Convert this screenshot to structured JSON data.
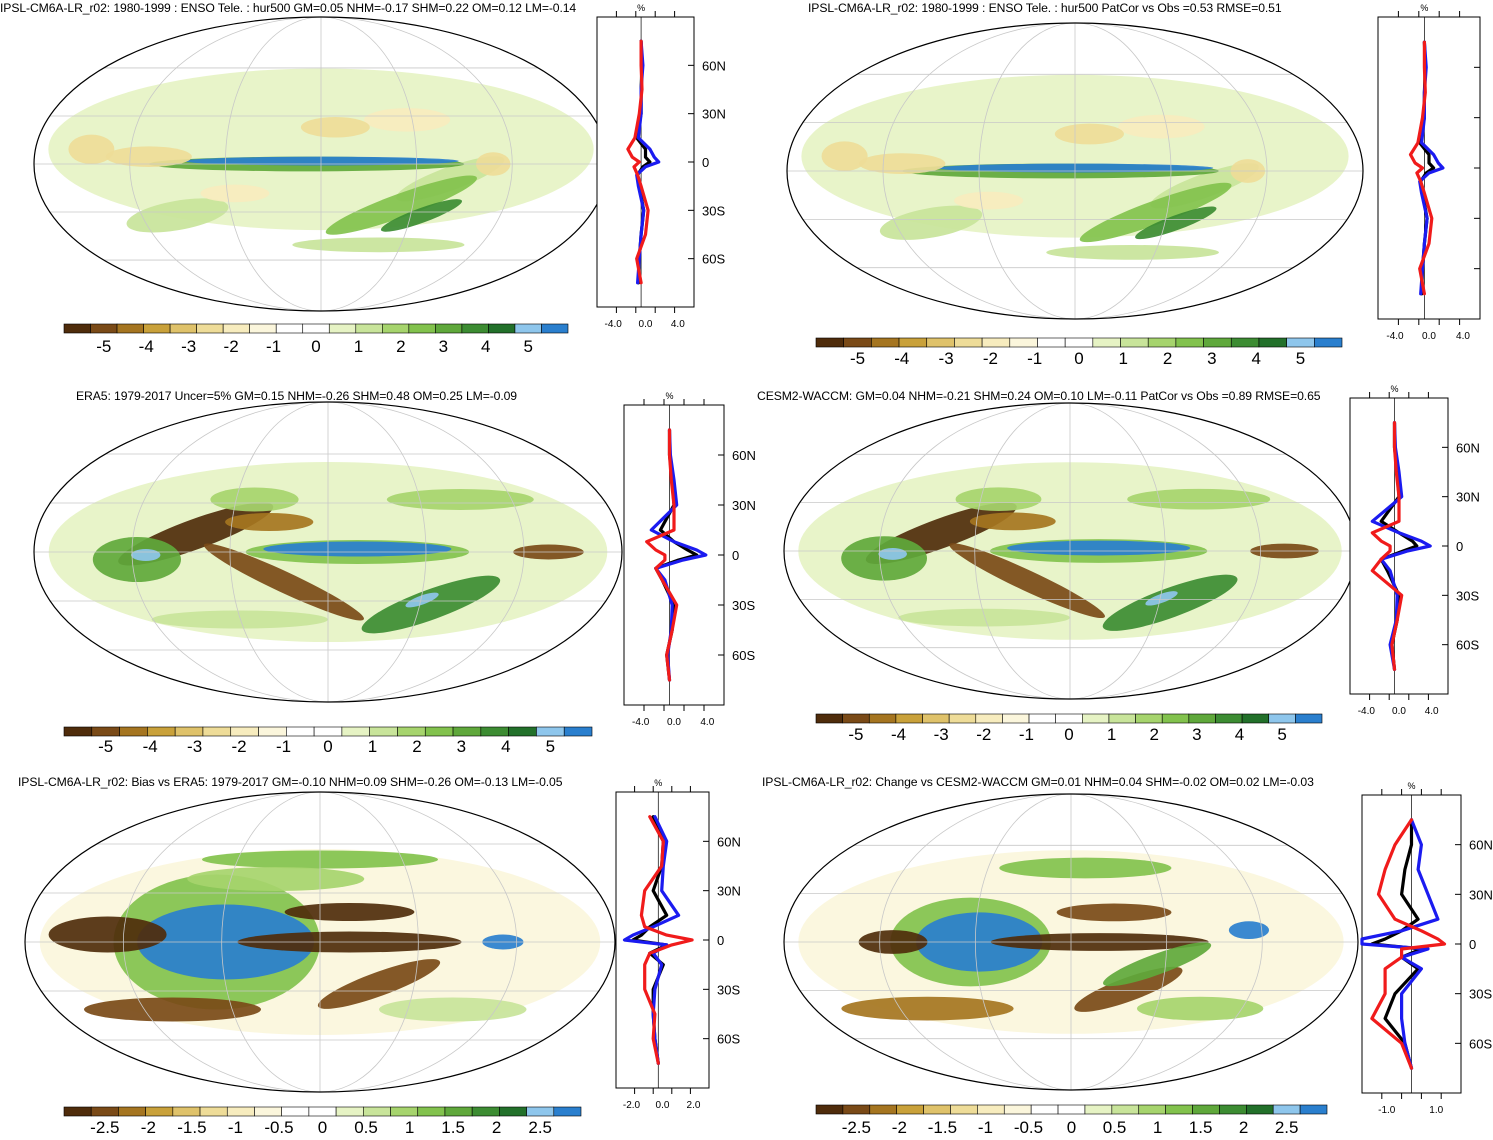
{
  "colors": {
    "palette": [
      "#4f2c0b",
      "#7a4a17",
      "#a57520",
      "#c9a13a",
      "#dfc26a",
      "#eedc98",
      "#f7ecbe",
      "#fbf6dc",
      "#ffffff",
      "#ffffff",
      "#e6f3c4",
      "#c8e49a",
      "#a6d46d",
      "#82c24d",
      "#5fa83b",
      "#3c8c32",
      "#22702a",
      "#8ec6ec",
      "#2a7fce"
    ],
    "zonal_lines": {
      "black": "#000000",
      "blue": "#1b1bf0",
      "red": "#f01b1b"
    }
  },
  "panels": [
    {
      "title": "IPSL-CM6A-LR_r02: 1980-1999 : ENSO Tele. : hur500 GM=0.05 NHM=-0.17 SHM=0.22 OM=0.12 LM=-0.14",
      "type": "model",
      "colorbar_labels": [
        "-5",
        "-4",
        "-3",
        "-2",
        "-1",
        "0",
        "1",
        "2",
        "3",
        "4",
        "5"
      ],
      "zonal_unit": "%",
      "zonal_xticks": [
        "-4.0",
        "0.0",
        "4.0"
      ],
      "zonal_ylabels": [
        "60N",
        "30N",
        "0",
        "30S",
        "60S"
      ]
    },
    {
      "title": "IPSL-CM6A-LR_r02: 1980-1999 : ENSO Tele. : hur500 PatCor vs Obs =0.53 RMSE=0.51",
      "type": "model",
      "colorbar_labels": [
        "-5",
        "-4",
        "-3",
        "-2",
        "-1",
        "0",
        "1",
        "2",
        "3",
        "4",
        "5"
      ],
      "zonal_unit": "%",
      "zonal_xticks": [
        "-4.0",
        "0.0",
        "4.0"
      ],
      "zonal_ylabels": []
    },
    {
      "title": "ERA5: 1979-2017 Uncer=5% GM=0.15 NHM=-0.26 SHM=0.48 OM=0.25 LM=-0.09",
      "type": "obs",
      "colorbar_labels": [
        "-5",
        "-4",
        "-3",
        "-2",
        "-1",
        "0",
        "1",
        "2",
        "3",
        "4",
        "5"
      ],
      "zonal_unit": "%",
      "zonal_xticks": [
        "-4.0",
        "0.0",
        "4.0"
      ],
      "zonal_ylabels": [
        "60N",
        "30N",
        "0",
        "30S",
        "60S"
      ]
    },
    {
      "title": "CESM2-WACCM: GM=0.04 NHM=-0.21 SHM=0.24 OM=0.10 LM=-0.11 PatCor vs Obs =0.89 RMSE=0.65",
      "type": "obs",
      "colorbar_labels": [
        "-5",
        "-4",
        "-3",
        "-2",
        "-1",
        "0",
        "1",
        "2",
        "3",
        "4",
        "5"
      ],
      "zonal_unit": "%",
      "zonal_xticks": [
        "-4.0",
        "0.0",
        "4.0"
      ],
      "zonal_ylabels": [
        "60N",
        "30N",
        "0",
        "30S",
        "60S"
      ]
    },
    {
      "title": "IPSL-CM6A-LR_r02: Bias vs ERA5: 1979-2017 GM=-0.10 NHM=0.09 SHM=-0.26 OM=-0.13 LM=-0.05",
      "type": "bias",
      "colorbar_labels": [
        "-2.5",
        "-2",
        "-1.5",
        "-1",
        "-0.5",
        "0",
        "0.5",
        "1",
        "1.5",
        "2",
        "2.5"
      ],
      "zonal_unit": "%",
      "zonal_xticks": [
        "-2.0",
        "0.0",
        "2.0"
      ],
      "zonal_ylabels": [
        "60N",
        "30N",
        "0",
        "30S",
        "60S"
      ]
    },
    {
      "title": "IPSL-CM6A-LR_r02: Change vs CESM2-WACCM GM=0.01 NHM=0.04 SHM=-0.02 OM=0.02 LM=-0.03",
      "type": "change",
      "colorbar_labels": [
        "-2.5",
        "-2",
        "-1.5",
        "-1",
        "-0.5",
        "0",
        "0.5",
        "1",
        "1.5",
        "2",
        "2.5"
      ],
      "zonal_unit": "%",
      "zonal_xticks": [
        "-1.0",
        "1.0"
      ],
      "zonal_ylabels": [
        "60N",
        "30N",
        "0",
        "30S",
        "60S"
      ]
    }
  ],
  "chart_data": [
    {
      "type": "heatmap",
      "title": "IPSL-CM6A-LR_r02: 1980-1999 : ENSO Tele. : hur500 GM=0.05 NHM=-0.17 SHM=0.22 OM=0.12 LM=-0.14",
      "colorbar": {
        "min": -5,
        "max": 5,
        "step": 0.5,
        "unit": "%"
      },
      "projection": "Robinson, centred 180",
      "zonal_mean": {
        "lat": [
          75,
          60,
          45,
          30,
          15,
          8,
          3,
          0,
          -3,
          -8,
          -15,
          -30,
          -45,
          -60,
          -75
        ],
        "series": [
          {
            "color": "black",
            "values": [
              0,
              0.1,
              0,
              0,
              -0.5,
              0.5,
              0.5,
              1.0,
              0.2,
              -0.4,
              -0.2,
              0.3,
              0,
              -0.2,
              -0.3
            ]
          },
          {
            "color": "blue",
            "values": [
              0,
              0.2,
              0,
              0,
              -0.3,
              1.0,
              1.5,
              2.0,
              0.5,
              -0.5,
              -0.3,
              0.3,
              0,
              -0.2,
              -0.4
            ]
          },
          {
            "color": "red",
            "values": [
              0,
              0,
              0.1,
              -0.2,
              -0.7,
              -1.5,
              -1.0,
              -0.2,
              -0.8,
              -0.4,
              0,
              0.8,
              0.5,
              -0.5,
              0
            ]
          }
        ],
        "xlim": [
          -5,
          6
        ]
      }
    },
    {
      "type": "heatmap",
      "title": "IPSL-CM6A-LR_r02: 1980-1999 : ENSO Tele. : hur500 PatCor vs Obs =0.53 RMSE=0.51",
      "colorbar": {
        "min": -5,
        "max": 5,
        "step": 0.5,
        "unit": "%"
      },
      "projection": "Robinson, centred 180",
      "zonal_mean": {
        "lat": [
          75,
          60,
          45,
          30,
          15,
          8,
          3,
          0,
          -3,
          -8,
          -15,
          -30,
          -45,
          -60,
          -75
        ],
        "series": [
          {
            "color": "black",
            "values": [
              0,
              0.1,
              0,
              0,
              -0.5,
              0.5,
              0.5,
              1.0,
              0.2,
              -0.4,
              -0.2,
              0.3,
              0,
              -0.2,
              -0.3
            ]
          },
          {
            "color": "blue",
            "values": [
              0,
              0.2,
              0,
              0,
              -0.3,
              1.0,
              1.5,
              2.0,
              0.5,
              -0.5,
              -0.3,
              0.3,
              0,
              -0.2,
              -0.4
            ]
          },
          {
            "color": "red",
            "values": [
              0,
              0,
              0.1,
              -0.2,
              -0.7,
              -1.5,
              -1.0,
              -0.2,
              -0.8,
              -0.4,
              0,
              0.8,
              0.5,
              -0.5,
              0
            ]
          }
        ],
        "xlim": [
          -5,
          6
        ]
      }
    },
    {
      "type": "heatmap",
      "title": "ERA5: 1979-2017 Uncer=5% GM=0.15 NHM=-0.26 SHM=0.48 OM=0.25 LM=-0.09",
      "colorbar": {
        "min": -5,
        "max": 5,
        "step": 0.5,
        "unit": "%"
      },
      "projection": "Robinson, centred 180",
      "zonal_mean": {
        "lat": [
          75,
          60,
          45,
          30,
          15,
          8,
          3,
          0,
          -3,
          -8,
          -15,
          -30,
          -45,
          -60,
          -75
        ],
        "series": [
          {
            "color": "black",
            "values": [
              0,
              0,
              0.3,
              0.5,
              -1.0,
              0.5,
              2.0,
              3.0,
              1.0,
              -1.5,
              -0.8,
              0.5,
              0.3,
              -0.3,
              0
            ]
          },
          {
            "color": "blue",
            "values": [
              0,
              0.1,
              0.5,
              0.8,
              -2.0,
              0.5,
              3.0,
              4.0,
              1.5,
              -1.5,
              -0.5,
              0.3,
              0.2,
              -0.2,
              0
            ]
          },
          {
            "color": "red",
            "values": [
              0,
              0,
              0.2,
              0.5,
              0.5,
              -2.5,
              -1.5,
              -0.5,
              -0.5,
              -1.5,
              -0.8,
              0.8,
              0.3,
              -0.3,
              0
            ]
          }
        ],
        "xlim": [
          -5,
          6
        ]
      }
    },
    {
      "type": "heatmap",
      "title": "CESM2-WACCM: GM=0.04 NHM=-0.21 SHM=0.24 OM=0.10 LM=-0.11 PatCor vs Obs =0.89 RMSE=0.65",
      "colorbar": {
        "min": -5,
        "max": 5,
        "step": 0.5,
        "unit": "%"
      },
      "projection": "Robinson, centred 180",
      "zonal_mean": {
        "lat": [
          75,
          60,
          45,
          30,
          15,
          8,
          3,
          0,
          -3,
          -8,
          -15,
          -30,
          -45,
          -60,
          -75
        ],
        "series": [
          {
            "color": "black",
            "values": [
              0,
              0,
              0.3,
              0.5,
              -1.5,
              0.5,
              2.0,
              2.5,
              1.0,
              -1.5,
              -0.8,
              0.5,
              0.3,
              -0.3,
              0
            ]
          },
          {
            "color": "blue",
            "values": [
              0,
              0.1,
              0.5,
              0.8,
              -2.5,
              0.5,
              3.0,
              4.0,
              1.5,
              -1.5,
              -0.5,
              0.3,
              0.2,
              -0.5,
              0
            ]
          },
          {
            "color": "red",
            "values": [
              0,
              0,
              0.2,
              0.5,
              0.5,
              -2.5,
              -1.5,
              -0.5,
              -0.5,
              -1.5,
              -2.5,
              0.8,
              0.3,
              -0.3,
              0
            ]
          }
        ],
        "xlim": [
          -5,
          6
        ]
      }
    },
    {
      "type": "heatmap",
      "title": "IPSL-CM6A-LR_r02: Bias vs ERA5: 1979-2017 GM=-0.10 NHM=0.09 SHM=-0.26 OM=-0.13 LM=-0.05",
      "colorbar": {
        "min": -2.5,
        "max": 2.5,
        "step": 0.25,
        "unit": "%"
      },
      "projection": "Robinson, centred 180",
      "zonal_mean": {
        "lat": [
          75,
          60,
          45,
          30,
          15,
          8,
          3,
          0,
          -3,
          -8,
          -15,
          -30,
          -45,
          -60,
          -75
        ],
        "series": [
          {
            "color": "black",
            "values": [
              -0.3,
              0.3,
              0.2,
              -0.3,
              0.5,
              -0.5,
              -1.0,
              -1.5,
              0.5,
              -0.5,
              0.3,
              -0.3,
              -0.3,
              -0.2,
              0
            ]
          },
          {
            "color": "blue",
            "values": [
              -0.2,
              0.5,
              0.3,
              0.2,
              1.2,
              -0.3,
              -1.5,
              -2.0,
              0.5,
              -0.3,
              0.2,
              -0.2,
              -0.3,
              -0.2,
              0
            ]
          },
          {
            "color": "red",
            "values": [
              -0.5,
              0.3,
              0.2,
              -0.8,
              -1.0,
              -0.8,
              0.5,
              2.0,
              0.8,
              -0.5,
              -0.8,
              -0.8,
              -0.2,
              -0.3,
              0
            ]
          }
        ],
        "xlim": [
          -2.5,
          3.0
        ]
      }
    },
    {
      "type": "heatmap",
      "title": "IPSL-CM6A-LR_r02: Change vs CESM2-WACCM GM=0.01 NHM=0.04 SHM=-0.02 OM=0.02 LM=-0.03",
      "colorbar": {
        "min": -2.5,
        "max": 2.5,
        "step": 0.25,
        "unit": "%"
      },
      "projection": "Robinson, centred 180",
      "zonal_mean": {
        "lat": [
          75,
          60,
          45,
          30,
          15,
          8,
          3,
          0,
          -3,
          -8,
          -15,
          -30,
          -45,
          -60,
          -75
        ],
        "series": [
          {
            "color": "black",
            "values": [
              0,
              0,
              -0.2,
              -0.3,
              0.2,
              -0.3,
              -0.8,
              -1.2,
              0.3,
              -0.3,
              0.2,
              -0.5,
              -0.8,
              -0.2,
              0
            ]
          },
          {
            "color": "blue",
            "values": [
              0,
              0.3,
              0.2,
              0.5,
              0.8,
              -0.3,
              -1.5,
              -1.5,
              0.5,
              -0.3,
              0.3,
              -0.3,
              -0.3,
              -0.2,
              0
            ]
          },
          {
            "color": "red",
            "values": [
              0,
              -0.5,
              -0.8,
              -1.0,
              -0.5,
              0.3,
              0.8,
              1.0,
              -0.3,
              -0.3,
              -0.8,
              -0.8,
              -1.2,
              -0.3,
              0
            ]
          }
        ],
        "xlim": [
          -1.5,
          1.5
        ]
      }
    }
  ]
}
